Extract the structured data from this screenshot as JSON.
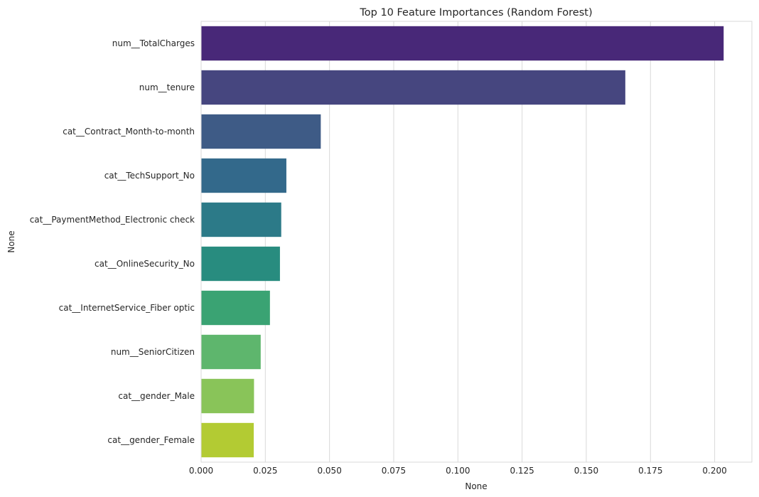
{
  "chart_data": {
    "type": "bar",
    "orientation": "horizontal",
    "title": "Top 10 Feature Importances (Random Forest)",
    "xlabel": "None",
    "ylabel": "None",
    "xlim": [
      0,
      0.2145
    ],
    "xticks": [
      0.0,
      0.025,
      0.05,
      0.075,
      0.1,
      0.125,
      0.15,
      0.175,
      0.2
    ],
    "xtick_labels": [
      "0.000",
      "0.025",
      "0.050",
      "0.075",
      "0.100",
      "0.125",
      "0.150",
      "0.175",
      "0.200"
    ],
    "grid": true,
    "categories": [
      "num__TotalCharges",
      "num__tenure",
      "cat__Contract_Month-to-month",
      "cat__TechSupport_No",
      "cat__PaymentMethod_Electronic check",
      "cat__OnlineSecurity_No",
      "cat__InternetService_Fiber optic",
      "num__SeniorCitizen",
      "cat__gender_Male",
      "cat__gender_Female"
    ],
    "values": [
      0.2035,
      0.1652,
      0.0466,
      0.0332,
      0.0312,
      0.0307,
      0.0268,
      0.0232,
      0.0206,
      0.0205
    ],
    "colors": [
      "#482878",
      "#46467f",
      "#3e5b86",
      "#33698b",
      "#2c7a88",
      "#288c7f",
      "#3aa373",
      "#5eb66d",
      "#89c459",
      "#b3cb33"
    ]
  }
}
